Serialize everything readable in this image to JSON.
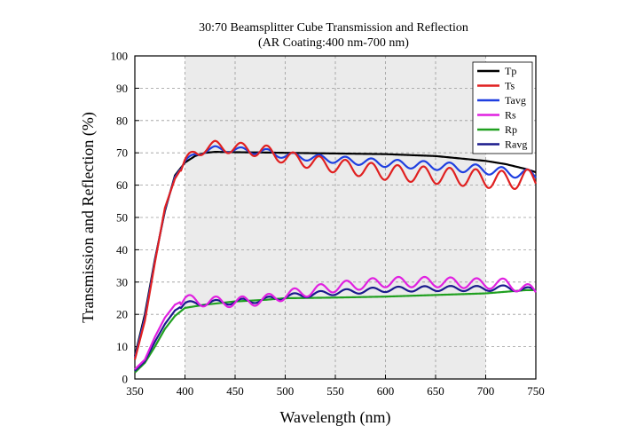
{
  "chart_data": {
    "type": "line",
    "title": "30:70 Beamsplitter Cube Transmission and Reflection",
    "subtitle": "(AR Coating:400 nm-700 nm)",
    "xlabel": "Wavelength (nm)",
    "ylabel": "Transmission and Reflection (%)",
    "xlim": [
      350,
      750
    ],
    "ylim": [
      0,
      100
    ],
    "x_ticks": [
      350,
      400,
      450,
      500,
      550,
      600,
      650,
      700,
      750
    ],
    "y_ticks": [
      0,
      10,
      20,
      30,
      40,
      50,
      60,
      70,
      80,
      90,
      100
    ],
    "grid": true,
    "shaded_region": [
      400,
      700
    ],
    "legend_position": "top-right",
    "series": [
      {
        "name": "Tp",
        "color": "#000000",
        "x": [
          350,
          360,
          370,
          380,
          390,
          400,
          410,
          420,
          430,
          450,
          480,
          500,
          550,
          600,
          650,
          700,
          720,
          740,
          750
        ],
        "y": [
          7,
          20,
          37,
          52,
          63,
          67,
          69,
          70,
          70.3,
          70.2,
          70.1,
          70,
          69.8,
          69.6,
          69,
          67.5,
          66.5,
          65,
          64
        ]
      },
      {
        "name": "Ts",
        "color": "#e02020",
        "x": [
          350,
          360,
          370,
          380,
          390,
          400,
          410,
          420,
          430,
          450,
          480,
          500,
          550,
          600,
          650,
          700,
          720,
          740,
          750
        ],
        "y": [
          6,
          18,
          36,
          53,
          62,
          67,
          70,
          71.5,
          72,
          71.5,
          70.5,
          68.5,
          66,
          64,
          63,
          62,
          61.5,
          62,
          61.5
        ]
      },
      {
        "name": "Tavg",
        "color": "#1f3fe0",
        "x": [
          350,
          360,
          370,
          380,
          390,
          400,
          410,
          420,
          430,
          450,
          480,
          500,
          550,
          600,
          650,
          700,
          720,
          740,
          750
        ],
        "y": [
          6.5,
          19,
          36.5,
          52.5,
          62.5,
          67,
          69.5,
          70.7,
          71.2,
          70.9,
          70.3,
          69.2,
          67.9,
          66.8,
          66,
          64.8,
          64,
          63.5,
          62.8
        ]
      },
      {
        "name": "Rs",
        "color": "#e020e0",
        "x": [
          350,
          360,
          370,
          380,
          390,
          400,
          420,
          450,
          480,
          500,
          550,
          600,
          650,
          700,
          720,
          740,
          750
        ],
        "y": [
          3,
          6,
          13,
          19,
          23,
          24.5,
          24,
          23.8,
          24.5,
          26,
          28.5,
          30,
          30,
          29.5,
          29.5,
          28,
          27
        ]
      },
      {
        "name": "Rp",
        "color": "#20a020",
        "x": [
          350,
          360,
          370,
          380,
          390,
          400,
          420,
          450,
          480,
          500,
          550,
          600,
          650,
          700,
          720,
          740,
          750
        ],
        "y": [
          2,
          5,
          10,
          15.5,
          19.5,
          22,
          23,
          24,
          24.5,
          25,
          25.2,
          25.5,
          26,
          26.5,
          27,
          27.5,
          27.5
        ]
      },
      {
        "name": "Ravg",
        "color": "#1a1a8c",
        "x": [
          350,
          360,
          370,
          380,
          390,
          400,
          420,
          450,
          480,
          500,
          550,
          600,
          650,
          700,
          720,
          740,
          750
        ],
        "y": [
          2.5,
          5.5,
          11.5,
          17,
          21.2,
          23.2,
          23.5,
          23.9,
          24.5,
          25.5,
          26.8,
          27.7,
          28,
          28,
          28.2,
          27.7,
          27.3
        ]
      }
    ]
  }
}
